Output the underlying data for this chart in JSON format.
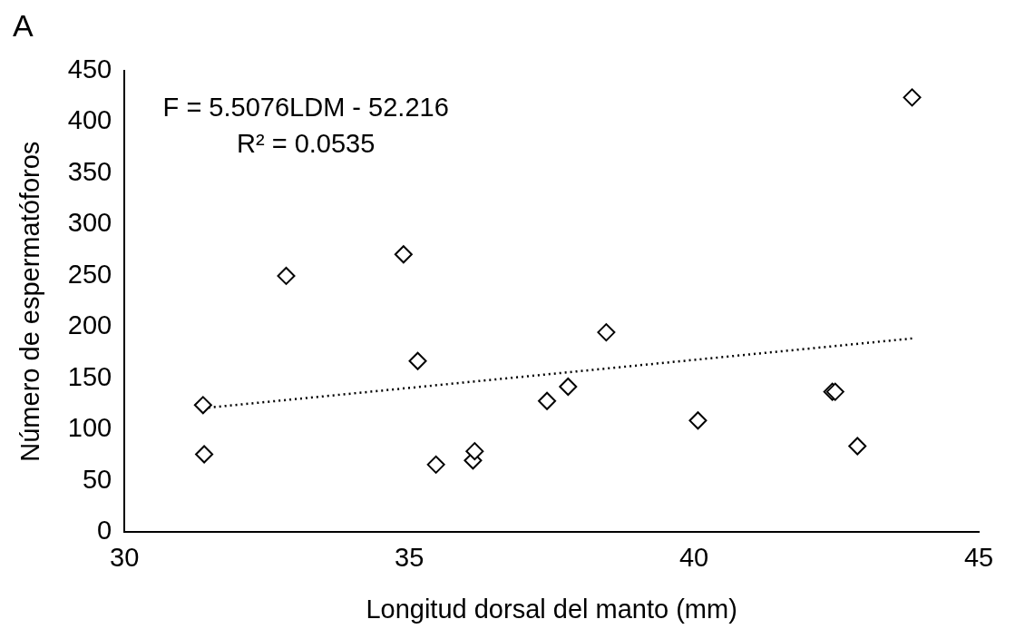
{
  "chart_data": {
    "type": "scatter",
    "xlabel": "Longitud dorsal del manto (mm)",
    "ylabel": "Número de espermatóforos",
    "xlim": [
      30,
      45
    ],
    "xticks": [
      30,
      35,
      40,
      45
    ],
    "ylim": [
      0,
      450
    ],
    "yticks": [
      0,
      50,
      100,
      150,
      200,
      250,
      300,
      350,
      400,
      450
    ],
    "grid": false,
    "legend": false,
    "marker": "diamond",
    "series": [
      {
        "color": "#000000",
        "x": [
          31.38,
          31.4,
          32.84,
          34.9,
          35.15,
          35.47,
          36.12,
          36.15,
          37.42,
          37.79,
          38.46,
          40.07,
          42.43,
          42.48,
          42.87,
          43.83
        ],
        "values": [
          124,
          76,
          250,
          271,
          167,
          66,
          70,
          79,
          128,
          142,
          195,
          109,
          137,
          137,
          84,
          424
        ]
      },
      {
        "type": "line",
        "color": "#000000",
        "line_style": "dotted",
        "marker": "none",
        "x": [
          31.38,
          43.83
        ],
        "values": [
          121,
          189
        ]
      }
    ],
    "annotations": [
      "A",
      "F = 5.5076LDM - 52.216",
      "R² = 0.0535"
    ]
  }
}
